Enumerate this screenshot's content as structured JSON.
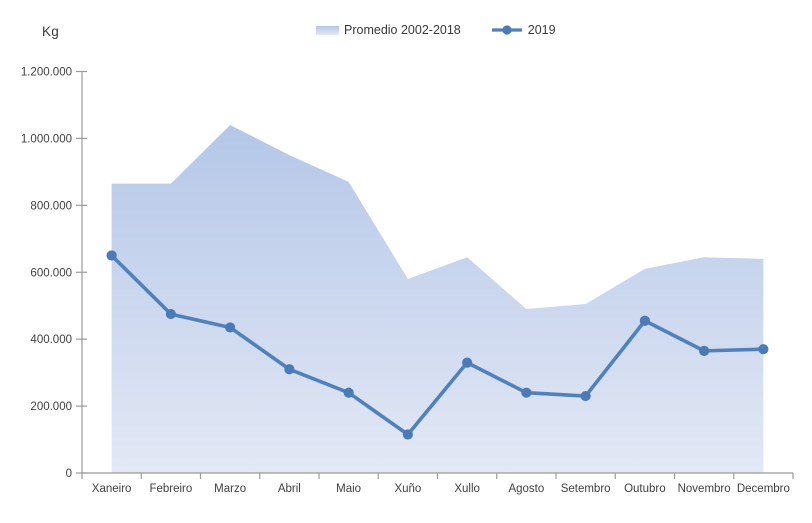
{
  "chart_data": {
    "type": "area+line",
    "title": "",
    "ylabel": "Kg",
    "categories": [
      "Xaneiro",
      "Febreiro",
      "Marzo",
      "Abril",
      "Maio",
      "Xuño",
      "Xullo",
      "Agosto",
      "Setembro",
      "Outubro",
      "Novembro",
      "Decembro"
    ],
    "series": [
      {
        "name": "Promedio 2002-2018",
        "type": "area",
        "values": [
          865000,
          865000,
          1040000,
          950000,
          870000,
          580000,
          645000,
          490000,
          505000,
          610000,
          645000,
          640000
        ]
      },
      {
        "name": "2019",
        "type": "line",
        "values": [
          650000,
          475000,
          435000,
          310000,
          240000,
          115000,
          330000,
          240000,
          230000,
          455000,
          365000,
          370000
        ]
      }
    ],
    "ylim": [
      0,
      1200000
    ],
    "ytick_step": 200000,
    "ytick_labels": [
      "0",
      "200.000",
      "400.000",
      "600.000",
      "800.000",
      "1.000.000",
      "1.200.000"
    ],
    "grid": false,
    "legend_position": "top-center",
    "colors": {
      "line": "#4f81bd",
      "marker": "#4a7bb7",
      "area_top": "#b4c7e8",
      "area_bottom": "#e3e8f5",
      "axis": "#9b9b9b",
      "text": "#3f3f3f"
    }
  }
}
